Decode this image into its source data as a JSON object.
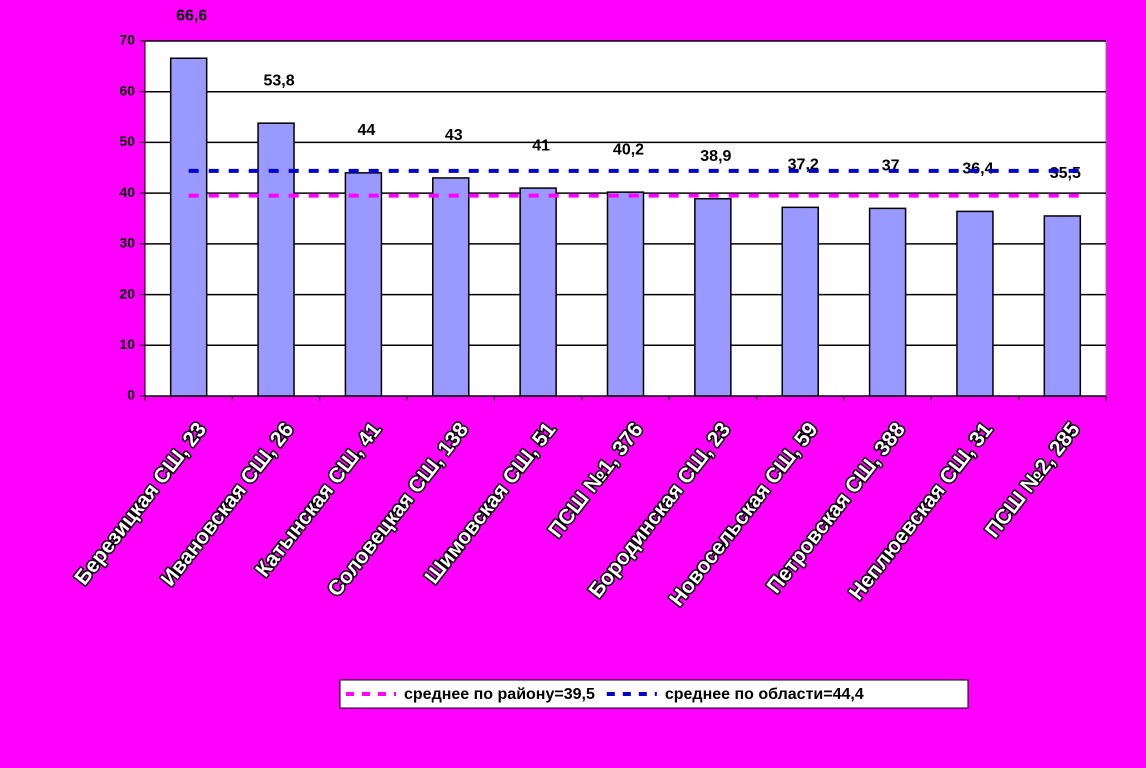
{
  "chart_data": {
    "type": "bar",
    "categories": [
      "Березицкая СШ, 23",
      "Ивановская СШ, 26",
      "Катынская СШ, 41",
      "Соловецкая СШ, 138",
      "Шимовская СШ, 51",
      "ПСШ №1, 376",
      "Бородинская СШ, 23",
      "Новосельская СШ, 59",
      "Петровская СШ, 388",
      "Неплюевская СШ, 31",
      "ПСШ №2, 285"
    ],
    "values": [
      66.6,
      53.8,
      44,
      43,
      41,
      40.2,
      38.9,
      37.2,
      37,
      36.4,
      35.5
    ],
    "value_labels": [
      "66,6",
      "53,8",
      "44",
      "43",
      "41",
      "40,2",
      "38,9",
      "37,2",
      "37",
      "36,4",
      "35,5"
    ],
    "color": "#9999ff",
    "ylim": [
      0,
      70
    ],
    "yticks": [
      0,
      10,
      20,
      30,
      40,
      50,
      60,
      70
    ],
    "grid": true,
    "lines": [
      {
        "name": "среднее по району=39,5",
        "value": 39.5,
        "color": "#ff00ff"
      },
      {
        "name": "среднее по области=44,4",
        "value": 44.4,
        "color": "#0000cc"
      }
    ],
    "legend": "bottom"
  }
}
